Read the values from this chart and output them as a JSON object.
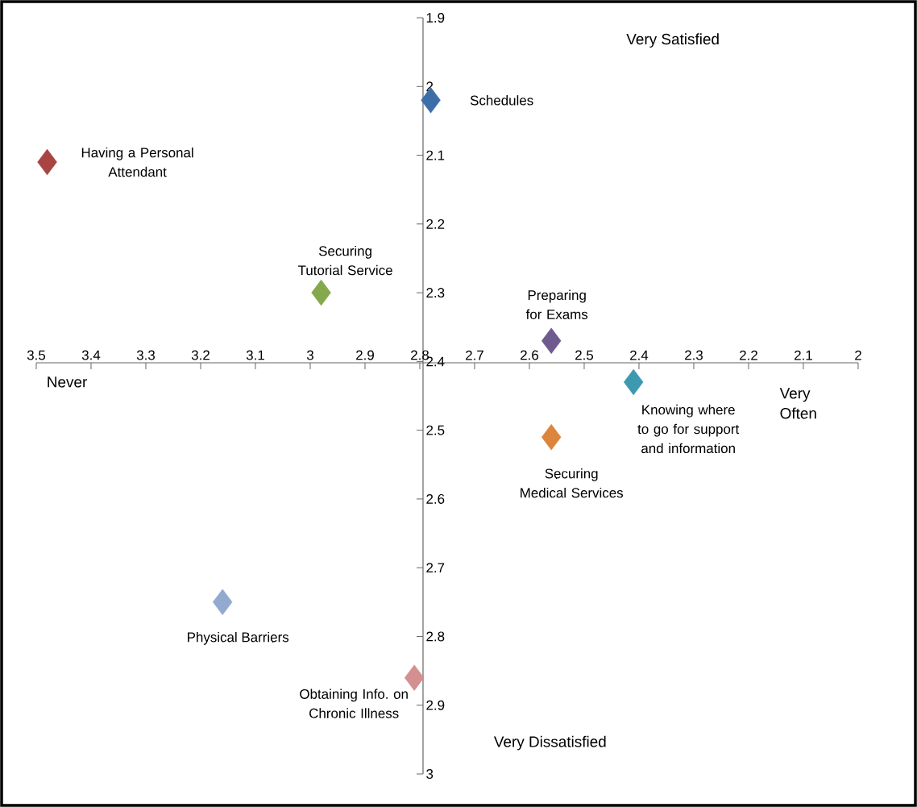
{
  "chart_data": {
    "type": "scatter",
    "marker": "diamond",
    "grid": false,
    "xlim": [
      3.5,
      2
    ],
    "ylim": [
      3,
      1.9
    ],
    "xticks": [
      3.5,
      3.4,
      3.3,
      3.2,
      3.1,
      3,
      2.9,
      2.8,
      2.7,
      2.6,
      2.5,
      2.4,
      2.3,
      2.2,
      2.1,
      2
    ],
    "yticks": [
      1.9,
      2,
      2.1,
      2.2,
      2.3,
      2.4,
      2.5,
      2.6,
      2.7,
      2.8,
      2.9,
      3
    ],
    "annotations": [
      "Very Satisfied",
      "Never",
      "Very Often",
      "Very Dissatisfied"
    ],
    "series": [
      {
        "name": "Schedules",
        "color": "#3e6ea8",
        "x": [
          2.78
        ],
        "values": [
          2.02
        ]
      },
      {
        "name": "Having a Personal Attendant",
        "color": "#a84442",
        "x": [
          3.48
        ],
        "values": [
          2.11
        ]
      },
      {
        "name": "Securing Tutorial Service",
        "color": "#86a84c",
        "x": [
          2.98
        ],
        "values": [
          2.3
        ]
      },
      {
        "name": "Preparing for Exams",
        "color": "#6f5a90",
        "x": [
          2.56
        ],
        "values": [
          2.37
        ]
      },
      {
        "name": "Knowing where to go for support and information",
        "color": "#3c99b0",
        "x": [
          2.41
        ],
        "values": [
          2.43
        ]
      },
      {
        "name": "Securing Medical Services",
        "color": "#dc853c",
        "x": [
          2.56
        ],
        "values": [
          2.51
        ]
      },
      {
        "name": "Physical Barriers",
        "color": "#93a9d0",
        "x": [
          3.16
        ],
        "values": [
          2.75
        ]
      },
      {
        "name": "Obtaining Info. on Chronic Illness",
        "color": "#d49090",
        "x": [
          2.81
        ],
        "values": [
          2.86
        ]
      }
    ]
  }
}
